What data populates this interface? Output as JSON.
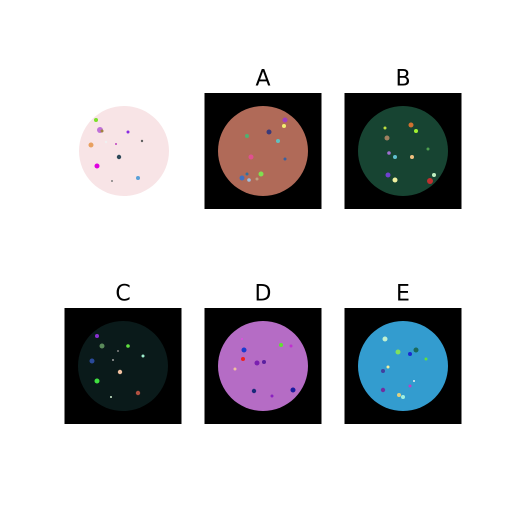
{
  "figure": {
    "background": "#ffffff",
    "tile_background": "#000000"
  },
  "panels": [
    {
      "id": "reference",
      "label": "",
      "disc_color": "#f8e4e6",
      "tile": false,
      "dots": [
        {
          "c": "#7be02a"
        },
        {
          "c": "#c070d8"
        },
        {
          "c": "#8a2be2"
        },
        {
          "c": "#e8a060"
        },
        {
          "c": "#f0f0f0"
        },
        {
          "c": "#2d4858"
        },
        {
          "c": "#e000e0"
        },
        {
          "c": "#5aa0d8"
        },
        {
          "c": "#606060"
        },
        {
          "c": "#808080"
        },
        {
          "c": "#c040c0"
        },
        {
          "c": "#a08040"
        }
      ]
    },
    {
      "id": "A",
      "label": "A",
      "disc_color": "#b06a58",
      "tile": true,
      "dots": [
        {
          "c": "#a040c0"
        },
        {
          "c": "#f0f070"
        },
        {
          "c": "#3a3a7a"
        },
        {
          "c": "#50b070"
        },
        {
          "c": "#60c0c0"
        },
        {
          "c": "#e05090"
        },
        {
          "c": "#4070c0"
        },
        {
          "c": "#3070a0"
        },
        {
          "c": "#80e050"
        },
        {
          "c": "#a0c0e0"
        },
        {
          "c": "#c0a080"
        },
        {
          "c": "#3a60a0"
        }
      ]
    },
    {
      "id": "B",
      "label": "B",
      "disc_color": "#174432",
      "tile": true,
      "dots": [
        {
          "c": "#d07030"
        },
        {
          "c": "#c0e040"
        },
        {
          "c": "#a0f030"
        },
        {
          "c": "#a08060"
        },
        {
          "c": "#a070d0"
        },
        {
          "c": "#60c0d0"
        },
        {
          "c": "#f0c080"
        },
        {
          "c": "#7040d0"
        },
        {
          "c": "#f0f0a0"
        },
        {
          "c": "#c03030"
        },
        {
          "c": "#c0f0c0"
        },
        {
          "c": "#50a050"
        }
      ]
    },
    {
      "id": "C",
      "label": "C",
      "disc_color": "#0a1a1a",
      "tile": true,
      "dots": [
        {
          "c": "#8a30d0"
        },
        {
          "c": "#5a8a5a"
        },
        {
          "c": "#60e040"
        },
        {
          "c": "#2a4a9a"
        },
        {
          "c": "#a0f0d0"
        },
        {
          "c": "#f0c0a0"
        },
        {
          "c": "#40e040"
        },
        {
          "c": "#b05040"
        },
        {
          "c": "#d0f0d0"
        },
        {
          "c": "#a0a0a0"
        },
        {
          "c": "#808080"
        }
      ]
    },
    {
      "id": "D",
      "label": "D",
      "disc_color": "#b56cc5",
      "tile": true,
      "dots": [
        {
          "c": "#1a3acf"
        },
        {
          "c": "#60e030"
        },
        {
          "c": "#c030d0"
        },
        {
          "c": "#f02020"
        },
        {
          "c": "#7a20b0"
        },
        {
          "c": "#5a20a0"
        },
        {
          "c": "#f0c0a0"
        },
        {
          "c": "#1a2a7a"
        },
        {
          "c": "#1a1aa0"
        },
        {
          "c": "#8a20c0"
        },
        {
          "c": "#e050e0"
        }
      ]
    },
    {
      "id": "E",
      "label": "E",
      "disc_color": "#339ccf",
      "tile": true,
      "dots": [
        {
          "c": "#c0f0d0"
        },
        {
          "c": "#80e060"
        },
        {
          "c": "#1a2ad0"
        },
        {
          "c": "#1a6a5a"
        },
        {
          "c": "#f0f0a0"
        },
        {
          "c": "#4040a0"
        },
        {
          "c": "#7030a0"
        },
        {
          "c": "#e0d080"
        },
        {
          "c": "#a0f0e0"
        },
        {
          "c": "#60e040"
        },
        {
          "c": "#c040c0"
        },
        {
          "c": "#f0f0f0"
        }
      ]
    }
  ]
}
